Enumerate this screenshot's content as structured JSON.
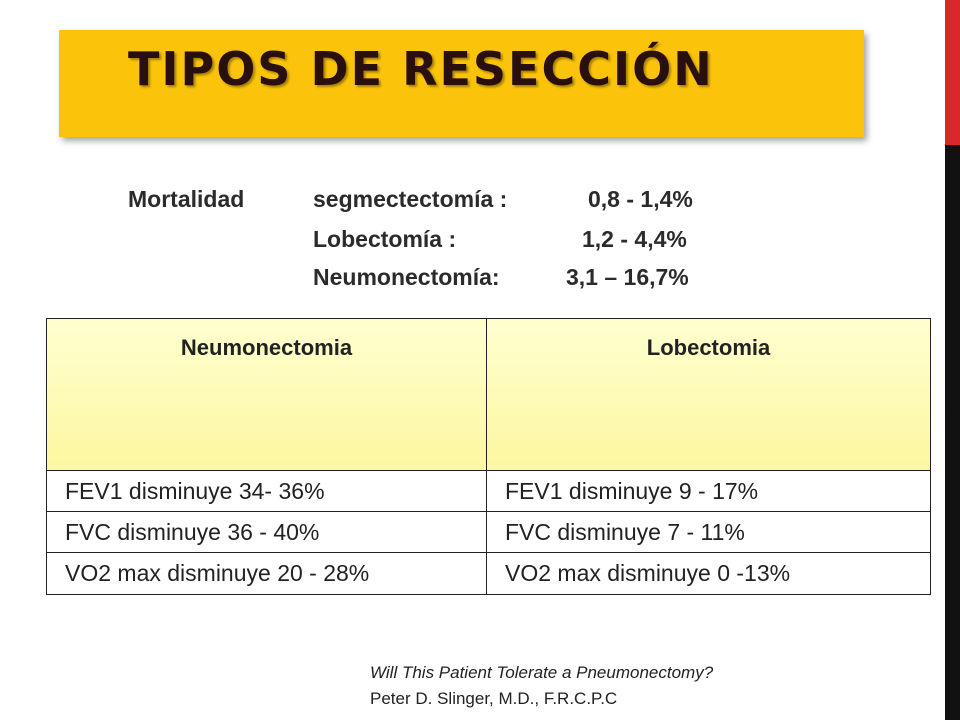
{
  "title": "TIPOS DE RESECCIÓN",
  "mortality": {
    "label": "Mortalidad",
    "rows": [
      {
        "name": "segmectectomía :",
        "value": "0,8 - 1,4%"
      },
      {
        "name": "Lobectomía :",
        "value": "1,2 - 4,4%"
      },
      {
        "name": "Neumonectomía:",
        "value": "3,1 – 16,7%"
      }
    ]
  },
  "table": {
    "headers": [
      "Neumonectomia",
      "Lobectomia"
    ],
    "rows": [
      [
        "FEV1 disminuye 34- 36%",
        "FEV1 disminuye 9 - 17%"
      ],
      [
        "FVC disminuye 36 - 40%",
        "FVC disminuye 7 - 11%"
      ],
      [
        "VO2 max disminuye 20 - 28%",
        "VO2 max disminuye 0 -13%"
      ]
    ]
  },
  "citation": {
    "title": "Will This Patient Tolerate a Pneumonectomy?",
    "author": "Peter D. Slinger, M.D., F.R.C.P.C"
  },
  "colors": {
    "title_bg": "#fbc40a",
    "header_bg": "#fcf7a0",
    "accent_red": "#d9282a",
    "side_black": "#111111"
  }
}
